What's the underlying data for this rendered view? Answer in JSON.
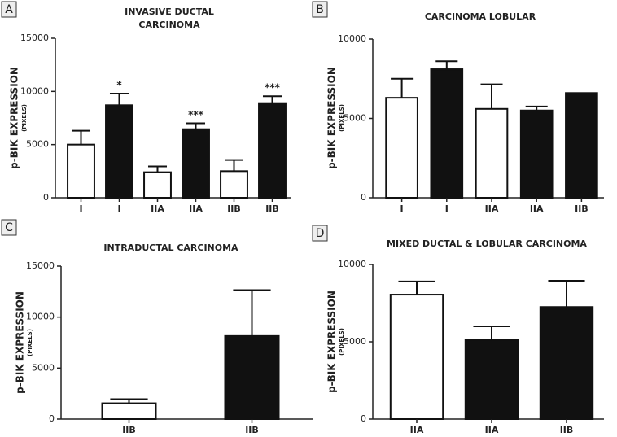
{
  "chart_data": [
    {
      "type": "bar",
      "panel": "A",
      "title_lines": [
        "INVASIVE DUCTAL",
        "CARCINOMA"
      ],
      "ylabel": "p-BIK EXPRESSION",
      "ylabel_unit": "(PIXELS)",
      "categories": [
        "I",
        "I",
        "IIA",
        "IIA",
        "IIB",
        "IIB"
      ],
      "values": [
        5000,
        8700,
        2400,
        6450,
        2500,
        8900
      ],
      "errors": [
        1300,
        1100,
        550,
        550,
        1050,
        650
      ],
      "colors": [
        "#ffffff",
        "#111111",
        "#ffffff",
        "#111111",
        "#ffffff",
        "#111111"
      ],
      "significance": [
        null,
        "*",
        null,
        "***",
        null,
        "***"
      ],
      "ylim": [
        0,
        15000
      ],
      "yticks": [
        0,
        5000,
        10000,
        15000
      ]
    },
    {
      "type": "bar",
      "panel": "B",
      "title_lines": [
        "CARCINOMA LOBULAR"
      ],
      "ylabel": "p-BIK EXPRESSION",
      "ylabel_unit": "(PIXELS)",
      "categories": [
        "I",
        "I",
        "IIA",
        "IIA",
        "IIB"
      ],
      "values": [
        6300,
        8100,
        5600,
        5500,
        6600
      ],
      "errors": [
        1200,
        500,
        1550,
        250,
        null
      ],
      "colors": [
        "#ffffff",
        "#111111",
        "#ffffff",
        "#111111",
        "#111111"
      ],
      "ylim": [
        0,
        10000
      ],
      "yticks": [
        0,
        5000,
        10000
      ]
    },
    {
      "type": "bar",
      "panel": "C",
      "title_lines": [
        "INTRADUCTAL CARCINOMA"
      ],
      "ylabel": "p-BIK EXPRESSION",
      "ylabel_unit": "(PIXELS)",
      "categories": [
        "IIB",
        "IIB"
      ],
      "values": [
        1550,
        8150
      ],
      "errors": [
        400,
        4500
      ],
      "colors": [
        "#ffffff",
        "#111111"
      ],
      "ylim": [
        0,
        15000
      ],
      "yticks": [
        0,
        5000,
        10000,
        15000
      ]
    },
    {
      "type": "bar",
      "panel": "D",
      "title_lines": [
        "MIXED DUCTAL & LOBULAR CARCINOMA"
      ],
      "ylabel": "p-BIK EXPRESSION",
      "ylabel_unit": "(PIXELS)",
      "categories": [
        "IIA",
        "IIA",
        "IIB"
      ],
      "values": [
        8050,
        5150,
        7250
      ],
      "errors": [
        850,
        850,
        1700
      ],
      "colors": [
        "#ffffff",
        "#111111",
        "#111111"
      ],
      "ylim": [
        0,
        10000
      ],
      "yticks": [
        0,
        5000,
        10000
      ]
    }
  ]
}
